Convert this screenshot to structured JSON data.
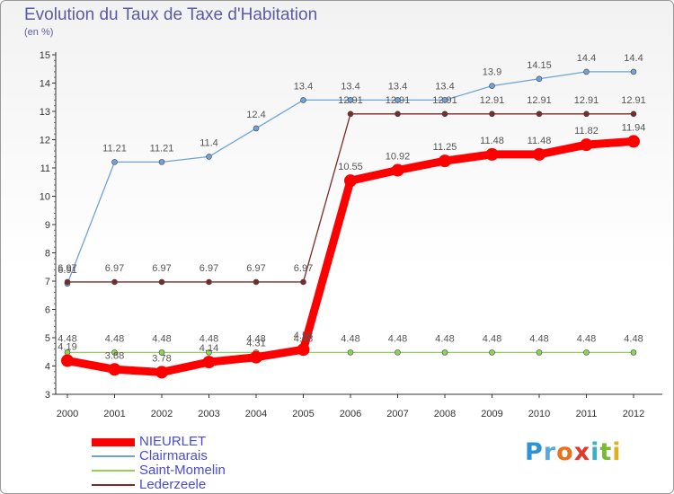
{
  "title": "Evolution du Taux de Taxe d'Habitation",
  "subtitle": "(en %)",
  "logo": {
    "letters": [
      "P",
      "r",
      "o",
      "x",
      "i",
      "t",
      "i"
    ],
    "colors": [
      "#2f93d3",
      "#5aa9dd",
      "#e8731c",
      "#e03a2a",
      "#3ab0c8",
      "#79b833",
      "#e0b020"
    ]
  },
  "chart_data": {
    "type": "line",
    "title": "Evolution du Taux de Taxe d'Habitation",
    "ylabel": "(en %)",
    "xlabel": "",
    "x": [
      "2000",
      "2001",
      "2002",
      "2003",
      "2004",
      "2005",
      "2006",
      "2007",
      "2008",
      "2009",
      "2010",
      "2011",
      "2012"
    ],
    "ylim": [
      3,
      15
    ],
    "yticks": [
      "3",
      "4",
      "5",
      "6",
      "7",
      "8",
      "9",
      "10",
      "11",
      "12",
      "13",
      "14",
      "15"
    ],
    "grid": false,
    "legend_position": "bottom-left",
    "series": [
      {
        "name": "NIEURLET",
        "color": "#ff0000",
        "values": [
          4.19,
          3.88,
          3.78,
          4.14,
          4.31,
          4.58,
          10.55,
          10.92,
          11.25,
          11.48,
          11.48,
          11.82,
          11.94
        ],
        "labels": [
          "4.19",
          "3.88",
          "3.78",
          "4.14",
          "4.31",
          "4.58",
          "10.55",
          "10.92",
          "11.25",
          "11.48",
          "11.48",
          "11.82",
          "11.94"
        ]
      },
      {
        "name": "Clairmarais",
        "color": "#6fa3d8",
        "values": [
          6.91,
          11.21,
          11.21,
          11.4,
          12.4,
          13.4,
          13.4,
          13.4,
          13.4,
          13.9,
          14.15,
          14.4,
          14.4
        ],
        "labels": [
          "6.91",
          "11.21",
          "11.21",
          "11.4",
          "12.4",
          "13.4",
          "13.4",
          "13.4",
          "13.4",
          "13.9",
          "14.15",
          "14.4",
          "14.4"
        ]
      },
      {
        "name": "Saint-Momelin",
        "color": "#8fd25a",
        "values": [
          4.48,
          4.48,
          4.48,
          4.48,
          4.48,
          4.48,
          4.48,
          4.48,
          4.48,
          4.48,
          4.48,
          4.48,
          4.48
        ],
        "labels": [
          "4.48",
          "4.48",
          "4.48",
          "4.48",
          "4.48",
          "4.48",
          "4.48",
          "4.48",
          "4.48",
          "4.48",
          "4.48",
          "4.48",
          "4.48"
        ]
      },
      {
        "name": "Lederzeele",
        "color": "#7a2a2a",
        "values": [
          6.97,
          6.97,
          6.97,
          6.97,
          6.97,
          6.97,
          12.91,
          12.91,
          12.91,
          12.91,
          12.91,
          12.91,
          12.91
        ],
        "labels": [
          "6.97",
          "6.97",
          "6.97",
          "6.97",
          "6.97",
          "6.97",
          "12.91",
          "12.91",
          "12.91",
          "12.91",
          "12.91",
          "12.91",
          "12.91"
        ]
      }
    ]
  }
}
